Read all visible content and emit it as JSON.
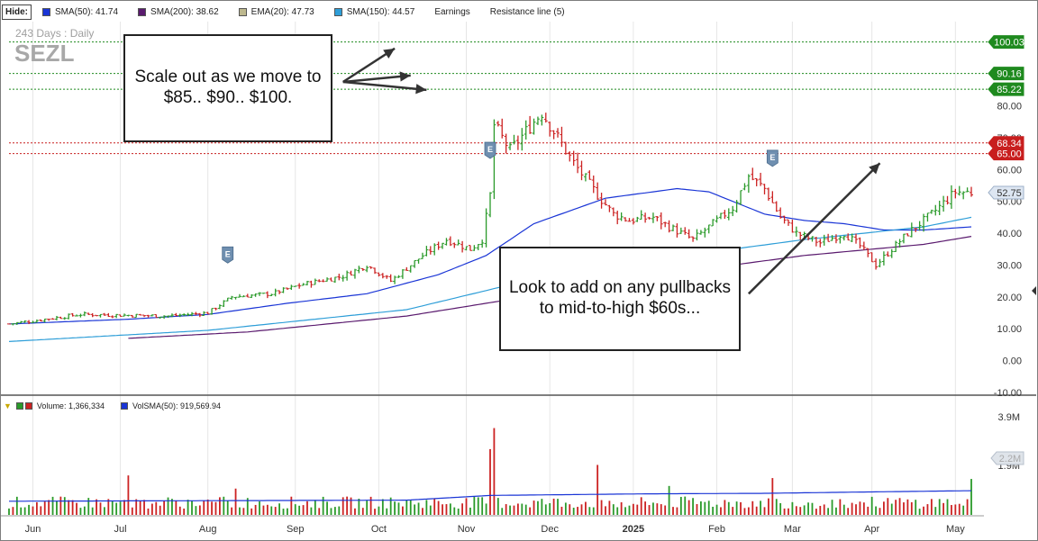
{
  "toolbar": {
    "hide_label": "Hide:",
    "legend": [
      {
        "label": "SMA(50): 41.74",
        "color": "#1a35d6"
      },
      {
        "label": "SMA(200): 38.62",
        "color": "#5a1a6e"
      },
      {
        "label": "EMA(20): 47.73",
        "color": "#bdb88e"
      },
      {
        "label": "SMA(150): 44.57",
        "color": "#2e9ed8"
      },
      {
        "label": "Earnings",
        "color": ""
      },
      {
        "label": "Resistance line (5)",
        "color": ""
      }
    ]
  },
  "volume_legend": {
    "volume_label": "Volume: 1,366,334",
    "volsma_label": "VolSMA(50): 919,569.94",
    "colors": {
      "up": "#2a9a2a",
      "down": "#cc2222",
      "volsma": "#1a35d6"
    }
  },
  "annotations": {
    "callout_1": "Scale out as we move to $85.. $90.. $100.",
    "callout_2": "Look to add on any pullbacks to mid-to-high $60s..."
  },
  "colors": {
    "up": "#2a9a2a",
    "down": "#cc2222",
    "green_level": "#1f8a1f",
    "red_level": "#c81e1e",
    "sma50": "#1a35d6",
    "sma150": "#2e9ed8",
    "sma200": "#5a1a6e",
    "earnings": "#6f8fb0",
    "last_price": "#dde6f2"
  },
  "chart_data": [
    {
      "type": "candlestick",
      "title": "SEZL",
      "subtitle": "243  Days : Daily",
      "y_ticks": [
        100.0,
        90.0,
        80.0,
        70.0,
        60.0,
        50.0,
        40.0,
        30.0,
        20.0,
        10.0,
        0.0,
        -10.0
      ],
      "y_tick_labels": [
        "",
        "",
        "80.00",
        "70.00",
        "60.00",
        "50.00",
        "40.00",
        "30.00",
        "20.00",
        "10.00",
        "0.00",
        "-10.00"
      ],
      "ylim": [
        -10,
        107
      ],
      "x_labels": [
        "Jun",
        "Jul",
        "Aug",
        "Sep",
        "Oct",
        "Nov",
        "Dec",
        "2025",
        "Feb",
        "Mar",
        "Apr",
        "May"
      ],
      "x_label_days": [
        6,
        28,
        50,
        72,
        93,
        115,
        136,
        157,
        178,
        197,
        217,
        238
      ],
      "n_days": 243,
      "price_path": [
        [
          0,
          11.5
        ],
        [
          18,
          14.5
        ],
        [
          40,
          14
        ],
        [
          50,
          15
        ],
        [
          56,
          20
        ],
        [
          66,
          21
        ],
        [
          74,
          24
        ],
        [
          84,
          26.5
        ],
        [
          90,
          30
        ],
        [
          96,
          25
        ],
        [
          104,
          33
        ],
        [
          110,
          38
        ],
        [
          116,
          35
        ],
        [
          119,
          38
        ],
        [
          121,
          52
        ],
        [
          122,
          74
        ],
        [
          126,
          66
        ],
        [
          130,
          72
        ],
        [
          134,
          78
        ],
        [
          138,
          70
        ],
        [
          142,
          62
        ],
        [
          148,
          52
        ],
        [
          152,
          46
        ],
        [
          156,
          44
        ],
        [
          162,
          45
        ],
        [
          166,
          42
        ],
        [
          172,
          38
        ],
        [
          176,
          42
        ],
        [
          182,
          48
        ],
        [
          186,
          58
        ],
        [
          190,
          54
        ],
        [
          194,
          45
        ],
        [
          198,
          40
        ],
        [
          204,
          37
        ],
        [
          210,
          40
        ],
        [
          214,
          36
        ],
        [
          218,
          30
        ],
        [
          222,
          35
        ],
        [
          226,
          40
        ],
        [
          232,
          46
        ],
        [
          238,
          53
        ],
        [
          242,
          52.75
        ]
      ],
      "series": [
        {
          "name": "SMA(50)",
          "path": [
            [
              0,
              11.5
            ],
            [
              30,
              13
            ],
            [
              50,
              14.5
            ],
            [
              70,
              18
            ],
            [
              90,
              21
            ],
            [
              108,
              27
            ],
            [
              120,
              33
            ],
            [
              132,
              43
            ],
            [
              150,
              51
            ],
            [
              168,
              54
            ],
            [
              176,
              53
            ],
            [
              190,
              46
            ],
            [
              200,
              44
            ],
            [
              210,
              43
            ],
            [
              220,
              41
            ],
            [
              230,
              41
            ],
            [
              242,
              42
            ]
          ]
        },
        {
          "name": "SMA(150)",
          "path": [
            [
              0,
              6
            ],
            [
              50,
              9.5
            ],
            [
              100,
              16
            ],
            [
              130,
              25
            ],
            [
              170,
              33
            ],
            [
              200,
              38
            ],
            [
              230,
              42
            ],
            [
              242,
              45
            ]
          ]
        },
        {
          "name": "SMA(200)",
          "path": [
            [
              30,
              7
            ],
            [
              60,
              9
            ],
            [
              100,
              14
            ],
            [
              130,
              20
            ],
            [
              170,
              28
            ],
            [
              200,
              33
            ],
            [
              230,
              36.5
            ],
            [
              242,
              39
            ]
          ]
        }
      ],
      "green_levels": [
        {
          "value": 100.03,
          "label": "100.03"
        },
        {
          "value": 90.16,
          "label": "90.16"
        },
        {
          "value": 85.22,
          "label": "85.22"
        }
      ],
      "red_levels": [
        {
          "value": 68.34,
          "label": "68.34"
        },
        {
          "value": 65.0,
          "label": "65.00"
        }
      ],
      "earnings_days": [
        55,
        121,
        192
      ],
      "earnings_label": "E",
      "last_price": {
        "value": 52.75,
        "label": "52.75"
      },
      "arrows": [
        {
          "from": [
            84,
            87.5
          ],
          "to": [
            97,
            98
          ]
        },
        {
          "from": [
            84,
            87.5
          ],
          "to": [
            101,
            89.5
          ]
        },
        {
          "from": [
            84,
            87.5
          ],
          "to": [
            105,
            85
          ]
        },
        {
          "from": [
            186,
            21
          ],
          "to": [
            219,
            62
          ]
        }
      ]
    },
    {
      "type": "bar",
      "title": "Volume",
      "y_tick_labels": [
        "3.9M",
        "1.9M"
      ],
      "ylim": [
        0,
        3900000
      ],
      "volsma_label": "2.2M",
      "volsma_value": 2200000,
      "avg_volume": 520000,
      "spikes": [
        [
          30,
          1500000
        ],
        [
          57,
          1000000
        ],
        [
          121,
          2500000
        ],
        [
          122,
          3300000
        ],
        [
          148,
          1900000
        ],
        [
          166,
          1100000
        ],
        [
          192,
          1400000
        ],
        [
          242,
          1366334
        ]
      ],
      "volsma_path": [
        [
          0,
          520000
        ],
        [
          100,
          560000
        ],
        [
          121,
          740000
        ],
        [
          160,
          800000
        ],
        [
          190,
          820000
        ],
        [
          220,
          880000
        ],
        [
          242,
          919570
        ]
      ]
    }
  ]
}
